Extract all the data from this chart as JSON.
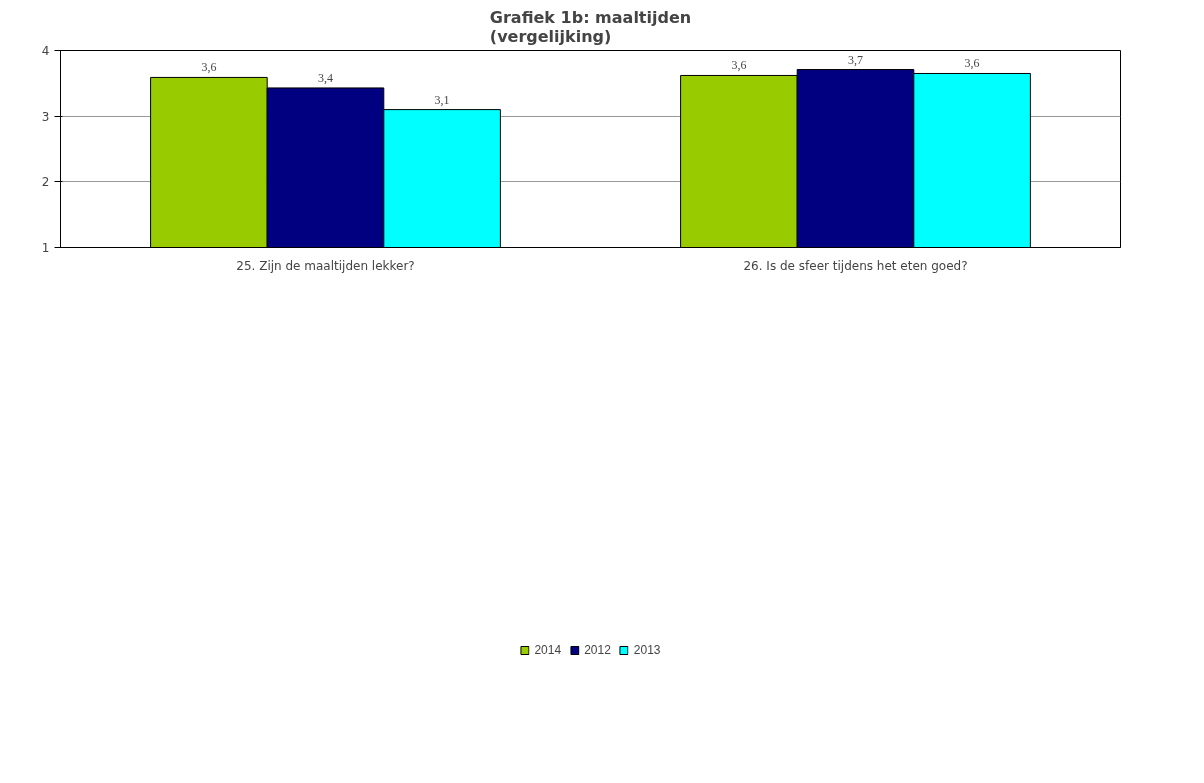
{
  "chart_data": {
    "type": "bar",
    "title": "Grafiek 1b: maaltijden\n(vergelijking)",
    "categories": [
      "25. Zijn de maaltijden lekker?",
      "26. Is de sfeer tijdens het eten goed?"
    ],
    "series": [
      {
        "name": "2014",
        "color": "#99cc00",
        "values": [
          3.59,
          3.62
        ],
        "value_labels": [
          "3,6",
          "3,6"
        ]
      },
      {
        "name": "2012",
        "color": "#000080",
        "values": [
          3.43,
          3.71
        ],
        "value_labels": [
          "3,4",
          "3,7"
        ]
      },
      {
        "name": "2013",
        "color": "#00ffff",
        "values": [
          3.1,
          3.65
        ],
        "value_labels": [
          "3,1",
          "3,6"
        ]
      }
    ],
    "ylim": [
      1,
      4
    ],
    "yticks": [
      1,
      2,
      3,
      4
    ],
    "grid": "y",
    "legend": "bottom"
  }
}
